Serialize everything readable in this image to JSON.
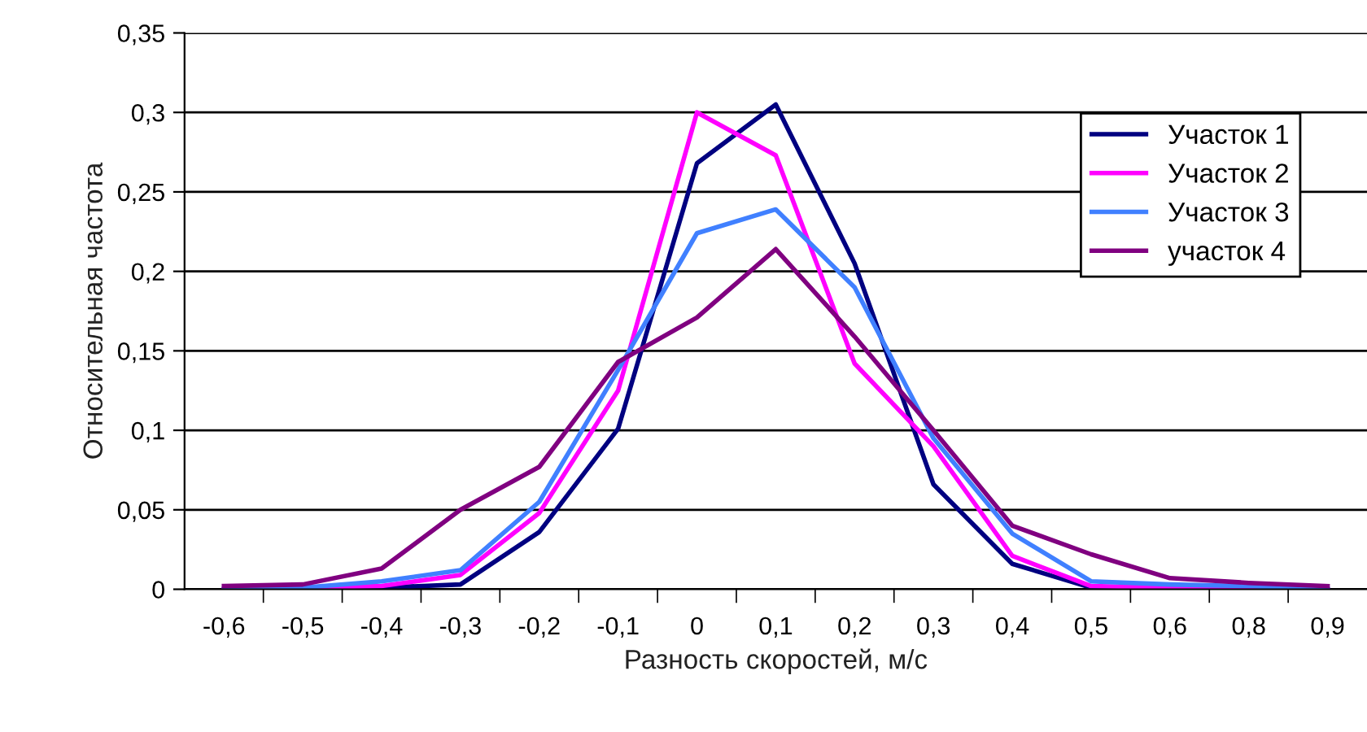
{
  "chart_data": {
    "type": "line",
    "xlabel": "Разность скоростей, м/с",
    "ylabel": "Относительная частота",
    "categories": [
      "-0,6",
      "-0,5",
      "-0,4",
      "-0,3",
      "-0,2",
      "-0,1",
      "0",
      "0,1",
      "0,2",
      "0,3",
      "0,4",
      "0,5",
      "0,6",
      "0,8",
      "0,9"
    ],
    "series": [
      {
        "name": "Участок 1",
        "color": "#000080",
        "values": [
          0,
          0.001,
          0.001,
          0.003,
          0.036,
          0.101,
          0.268,
          0.305,
          0.205,
          0.066,
          0.016,
          0.001,
          0,
          0,
          0
        ]
      },
      {
        "name": "Участок 2",
        "color": "#ff00ff",
        "values": [
          0,
          0.001,
          0.002,
          0.009,
          0.048,
          0.125,
          0.3,
          0.273,
          0.142,
          0.09,
          0.021,
          0.002,
          0.001,
          0,
          0
        ]
      },
      {
        "name": "Участок 3",
        "color": "#4080ff",
        "values": [
          0,
          0.001,
          0.005,
          0.012,
          0.055,
          0.138,
          0.224,
          0.239,
          0.19,
          0.095,
          0.035,
          0.005,
          0.003,
          0.002,
          0
        ]
      },
      {
        "name": "участок 4",
        "color": "#800080",
        "values": [
          0.002,
          0.003,
          0.013,
          0.05,
          0.077,
          0.143,
          0.171,
          0.214,
          0.159,
          0.1,
          0.04,
          0.022,
          0.007,
          0.004,
          0.002
        ]
      }
    ],
    "ylim": [
      0,
      0.35
    ],
    "yticks": [
      0,
      {
        "value": 0.05,
        "label": "0,05"
      },
      {
        "value": 0.1,
        "label": "0,1"
      },
      {
        "value": 0.15,
        "label": "0,15"
      },
      {
        "value": 0.2,
        "label": "0,2"
      },
      {
        "value": 0.25,
        "label": "0,25"
      },
      {
        "value": 0.3,
        "label": "0,3"
      },
      {
        "value": 0.35,
        "label": "0,35"
      }
    ],
    "grid": "y",
    "legend": "top right",
    "marker": "none",
    "line_style": "solid"
  }
}
